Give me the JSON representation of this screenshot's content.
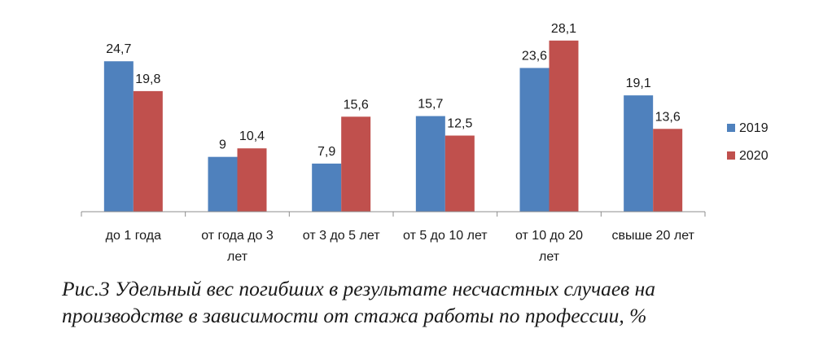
{
  "chart_data": {
    "type": "bar",
    "categories": [
      [
        "до 1 года"
      ],
      [
        "от года до 3",
        "лет"
      ],
      [
        "от 3 до 5 лет"
      ],
      [
        "от 5 до 10 лет"
      ],
      [
        "от 10 до 20",
        "лет"
      ],
      [
        "свыше 20 лет"
      ]
    ],
    "series": [
      {
        "name": "2019",
        "color": "#4f81bd",
        "values": [
          24.7,
          9,
          7.9,
          15.7,
          23.6,
          19.1
        ],
        "labels": [
          "24,7",
          "9",
          "7,9",
          "15,7",
          "23,6",
          "19,1"
        ]
      },
      {
        "name": "2020",
        "color": "#c0504d",
        "values": [
          19.8,
          10.4,
          15.6,
          12.5,
          28.1,
          13.6
        ],
        "labels": [
          "19,8",
          "10,4",
          "15,6",
          "12,5",
          "28,1",
          "13,6"
        ]
      }
    ],
    "ylim": [
      0,
      30
    ],
    "grid": false,
    "legend_position": "right"
  },
  "caption": {
    "line1": "Рис.3 Удельный вес погибших в результате несчастных случаев на",
    "line2": "производстве в зависимости от стажа работы по профессии, %"
  }
}
